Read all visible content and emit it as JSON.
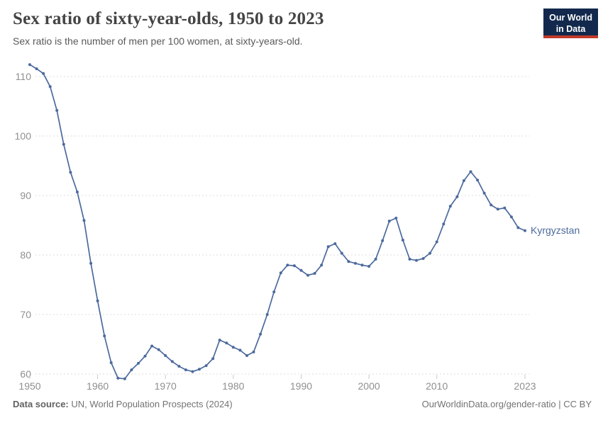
{
  "header": {
    "title": "Sex ratio of sixty-year-olds, 1950 to 2023",
    "subtitle": "Sex ratio is the number of men per 100 women, at sixty-years-old."
  },
  "logo": {
    "line1": "Our World",
    "line2": "in Data",
    "bg_color": "#12294d",
    "accent_color": "#c0392b"
  },
  "footer": {
    "source_label": "Data source:",
    "source_text": " UN, World Population Prospects (2024)",
    "link_text": "OurWorldinData.org/gender-ratio | CC BY"
  },
  "chart_data": {
    "type": "line",
    "title": "Sex ratio of sixty-year-olds, 1950 to 2023",
    "subtitle": "Sex ratio is the number of men per 100 women, at sixty-years-old.",
    "xlabel": "",
    "ylabel": "",
    "x_ticks": [
      1950,
      1960,
      1970,
      1980,
      1990,
      2000,
      2010,
      2023
    ],
    "y_ticks": [
      60,
      70,
      80,
      90,
      100,
      110
    ],
    "xlim": [
      1950,
      2023
    ],
    "ylim": [
      59,
      113
    ],
    "grid": "horizontal-dashed",
    "legend": "end-of-line-label",
    "series": [
      {
        "name": "Kyrgyzstan",
        "color": "#4c6a9c",
        "x": [
          1950,
          1951,
          1952,
          1953,
          1954,
          1955,
          1956,
          1957,
          1958,
          1959,
          1960,
          1961,
          1962,
          1963,
          1964,
          1965,
          1966,
          1967,
          1968,
          1969,
          1970,
          1971,
          1972,
          1973,
          1974,
          1975,
          1976,
          1977,
          1978,
          1979,
          1980,
          1981,
          1982,
          1983,
          1984,
          1985,
          1986,
          1987,
          1988,
          1989,
          1990,
          1991,
          1992,
          1993,
          1994,
          1995,
          1996,
          1997,
          1998,
          1999,
          2000,
          2001,
          2002,
          2003,
          2004,
          2005,
          2006,
          2007,
          2008,
          2009,
          2010,
          2011,
          2012,
          2013,
          2014,
          2015,
          2016,
          2017,
          2018,
          2019,
          2020,
          2021,
          2022,
          2023
        ],
        "values": [
          112.0,
          111.3,
          110.5,
          108.3,
          104.3,
          98.6,
          93.9,
          90.6,
          85.8,
          78.6,
          72.3,
          66.4,
          61.9,
          59.3,
          59.2,
          60.7,
          61.8,
          63.0,
          64.7,
          64.1,
          63.1,
          62.1,
          61.3,
          60.7,
          60.4,
          60.8,
          61.4,
          62.6,
          65.7,
          65.2,
          64.5,
          64.0,
          63.1,
          63.7,
          66.7,
          70.0,
          73.8,
          77.0,
          78.3,
          78.2,
          77.4,
          76.6,
          76.9,
          78.3,
          81.4,
          81.9,
          80.3,
          78.9,
          78.6,
          78.3,
          78.1,
          79.3,
          82.4,
          85.7,
          86.2,
          82.5,
          79.3,
          79.1,
          79.4,
          80.3,
          82.2,
          85.2,
          88.2,
          89.8,
          92.5,
          94.0,
          92.6,
          90.4,
          88.4,
          87.7,
          87.9,
          86.4,
          84.6,
          84.1
        ]
      }
    ]
  }
}
